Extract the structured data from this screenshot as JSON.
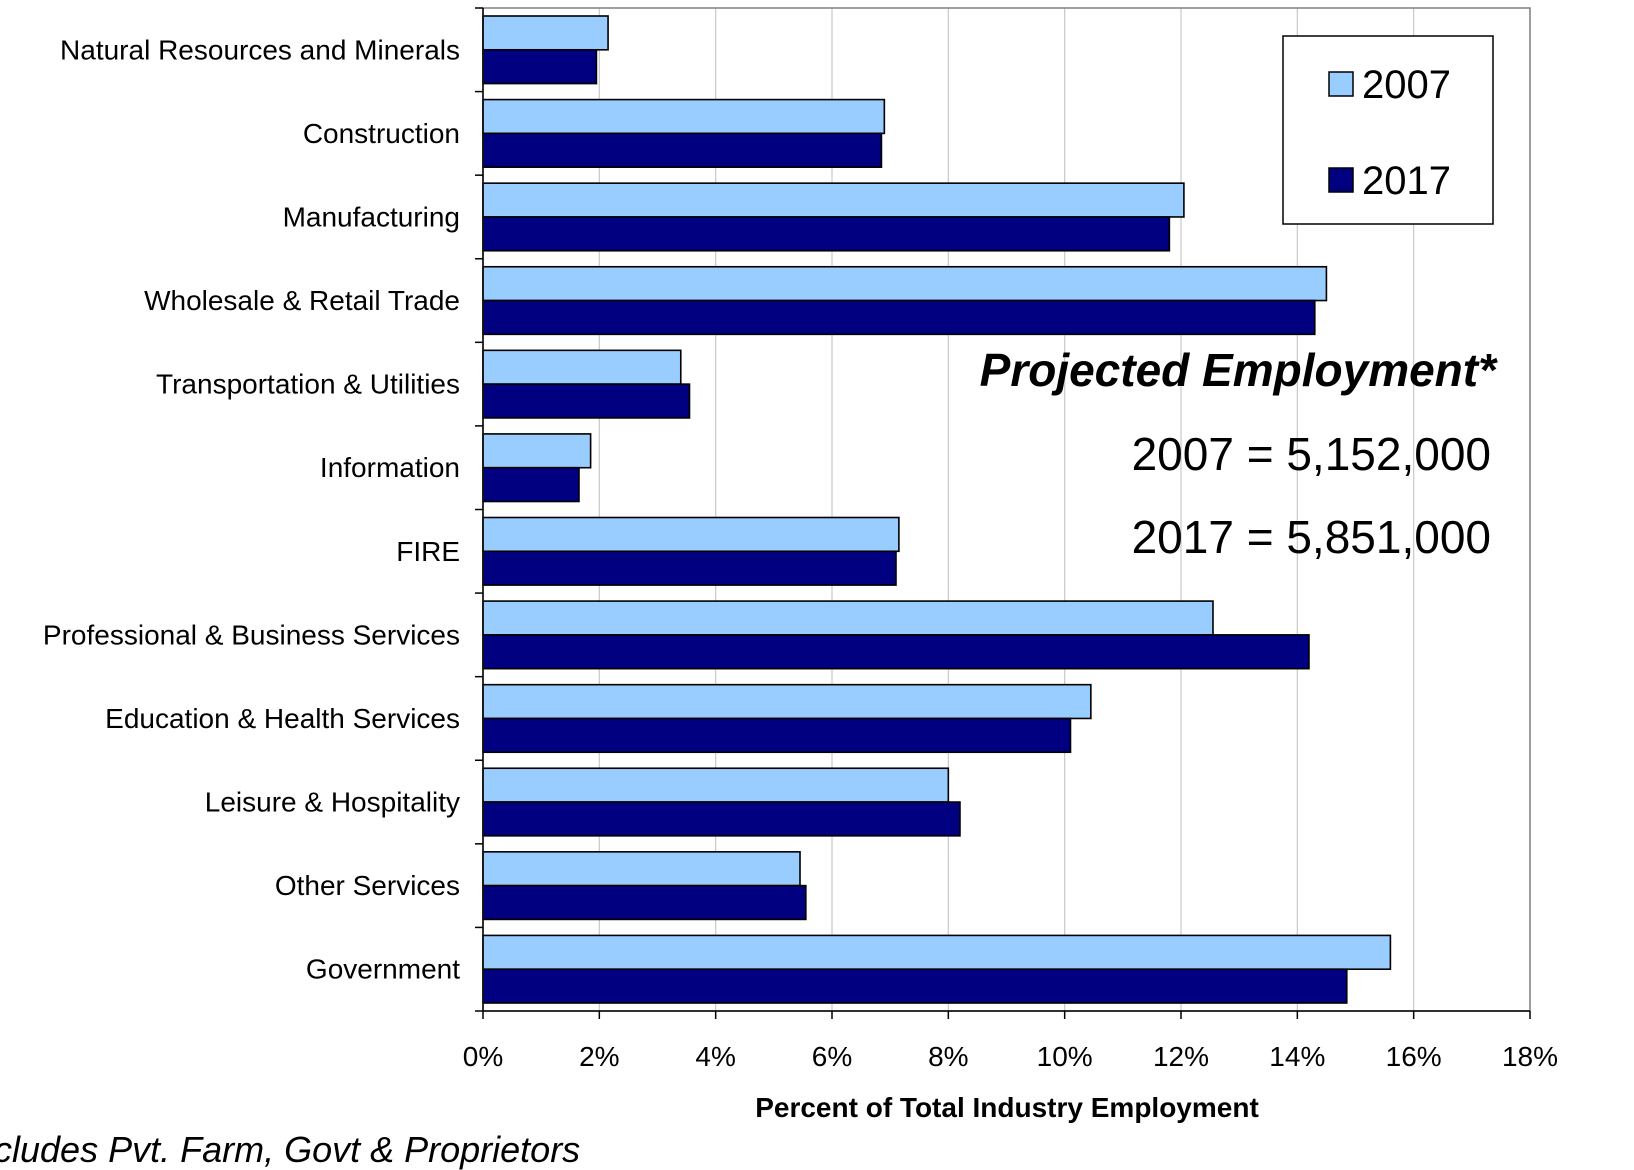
{
  "chart_data": {
    "type": "bar",
    "orientation": "horizontal",
    "categories": [
      "Natural Resources and Minerals",
      "Construction",
      "Manufacturing",
      "Wholesale & Retail Trade",
      "Transportation & Utilities",
      "Information",
      "FIRE",
      "Professional & Business Services",
      "Education & Health Services",
      "Leisure & Hospitality",
      "Other Services",
      "Government"
    ],
    "series": [
      {
        "name": "2007",
        "color": "#99ccff",
        "values": [
          2.15,
          6.9,
          12.05,
          14.5,
          3.4,
          1.85,
          7.15,
          12.55,
          10.45,
          8.0,
          5.45,
          15.6
        ]
      },
      {
        "name": "2017",
        "color": "#000080",
        "values": [
          1.95,
          6.85,
          11.8,
          14.3,
          3.55,
          1.65,
          7.1,
          14.2,
          10.1,
          8.2,
          5.55,
          14.85
        ]
      }
    ],
    "xlabel": "Percent of Total Industry Employment",
    "xlim": [
      0,
      18
    ],
    "xticks": [
      "0%",
      "2%",
      "4%",
      "6%",
      "8%",
      "10%",
      "12%",
      "14%",
      "16%",
      "18%"
    ],
    "grid": "vertical",
    "legend": {
      "position": "top-right",
      "entries": [
        "2007",
        "2017"
      ]
    },
    "annotations": {
      "title": "Projected Employment*",
      "lines": [
        "2007 = 5,152,000",
        "2017 = 5,851,000"
      ]
    },
    "footnote": "cludes Pvt. Farm, Govt & Proprietors"
  }
}
